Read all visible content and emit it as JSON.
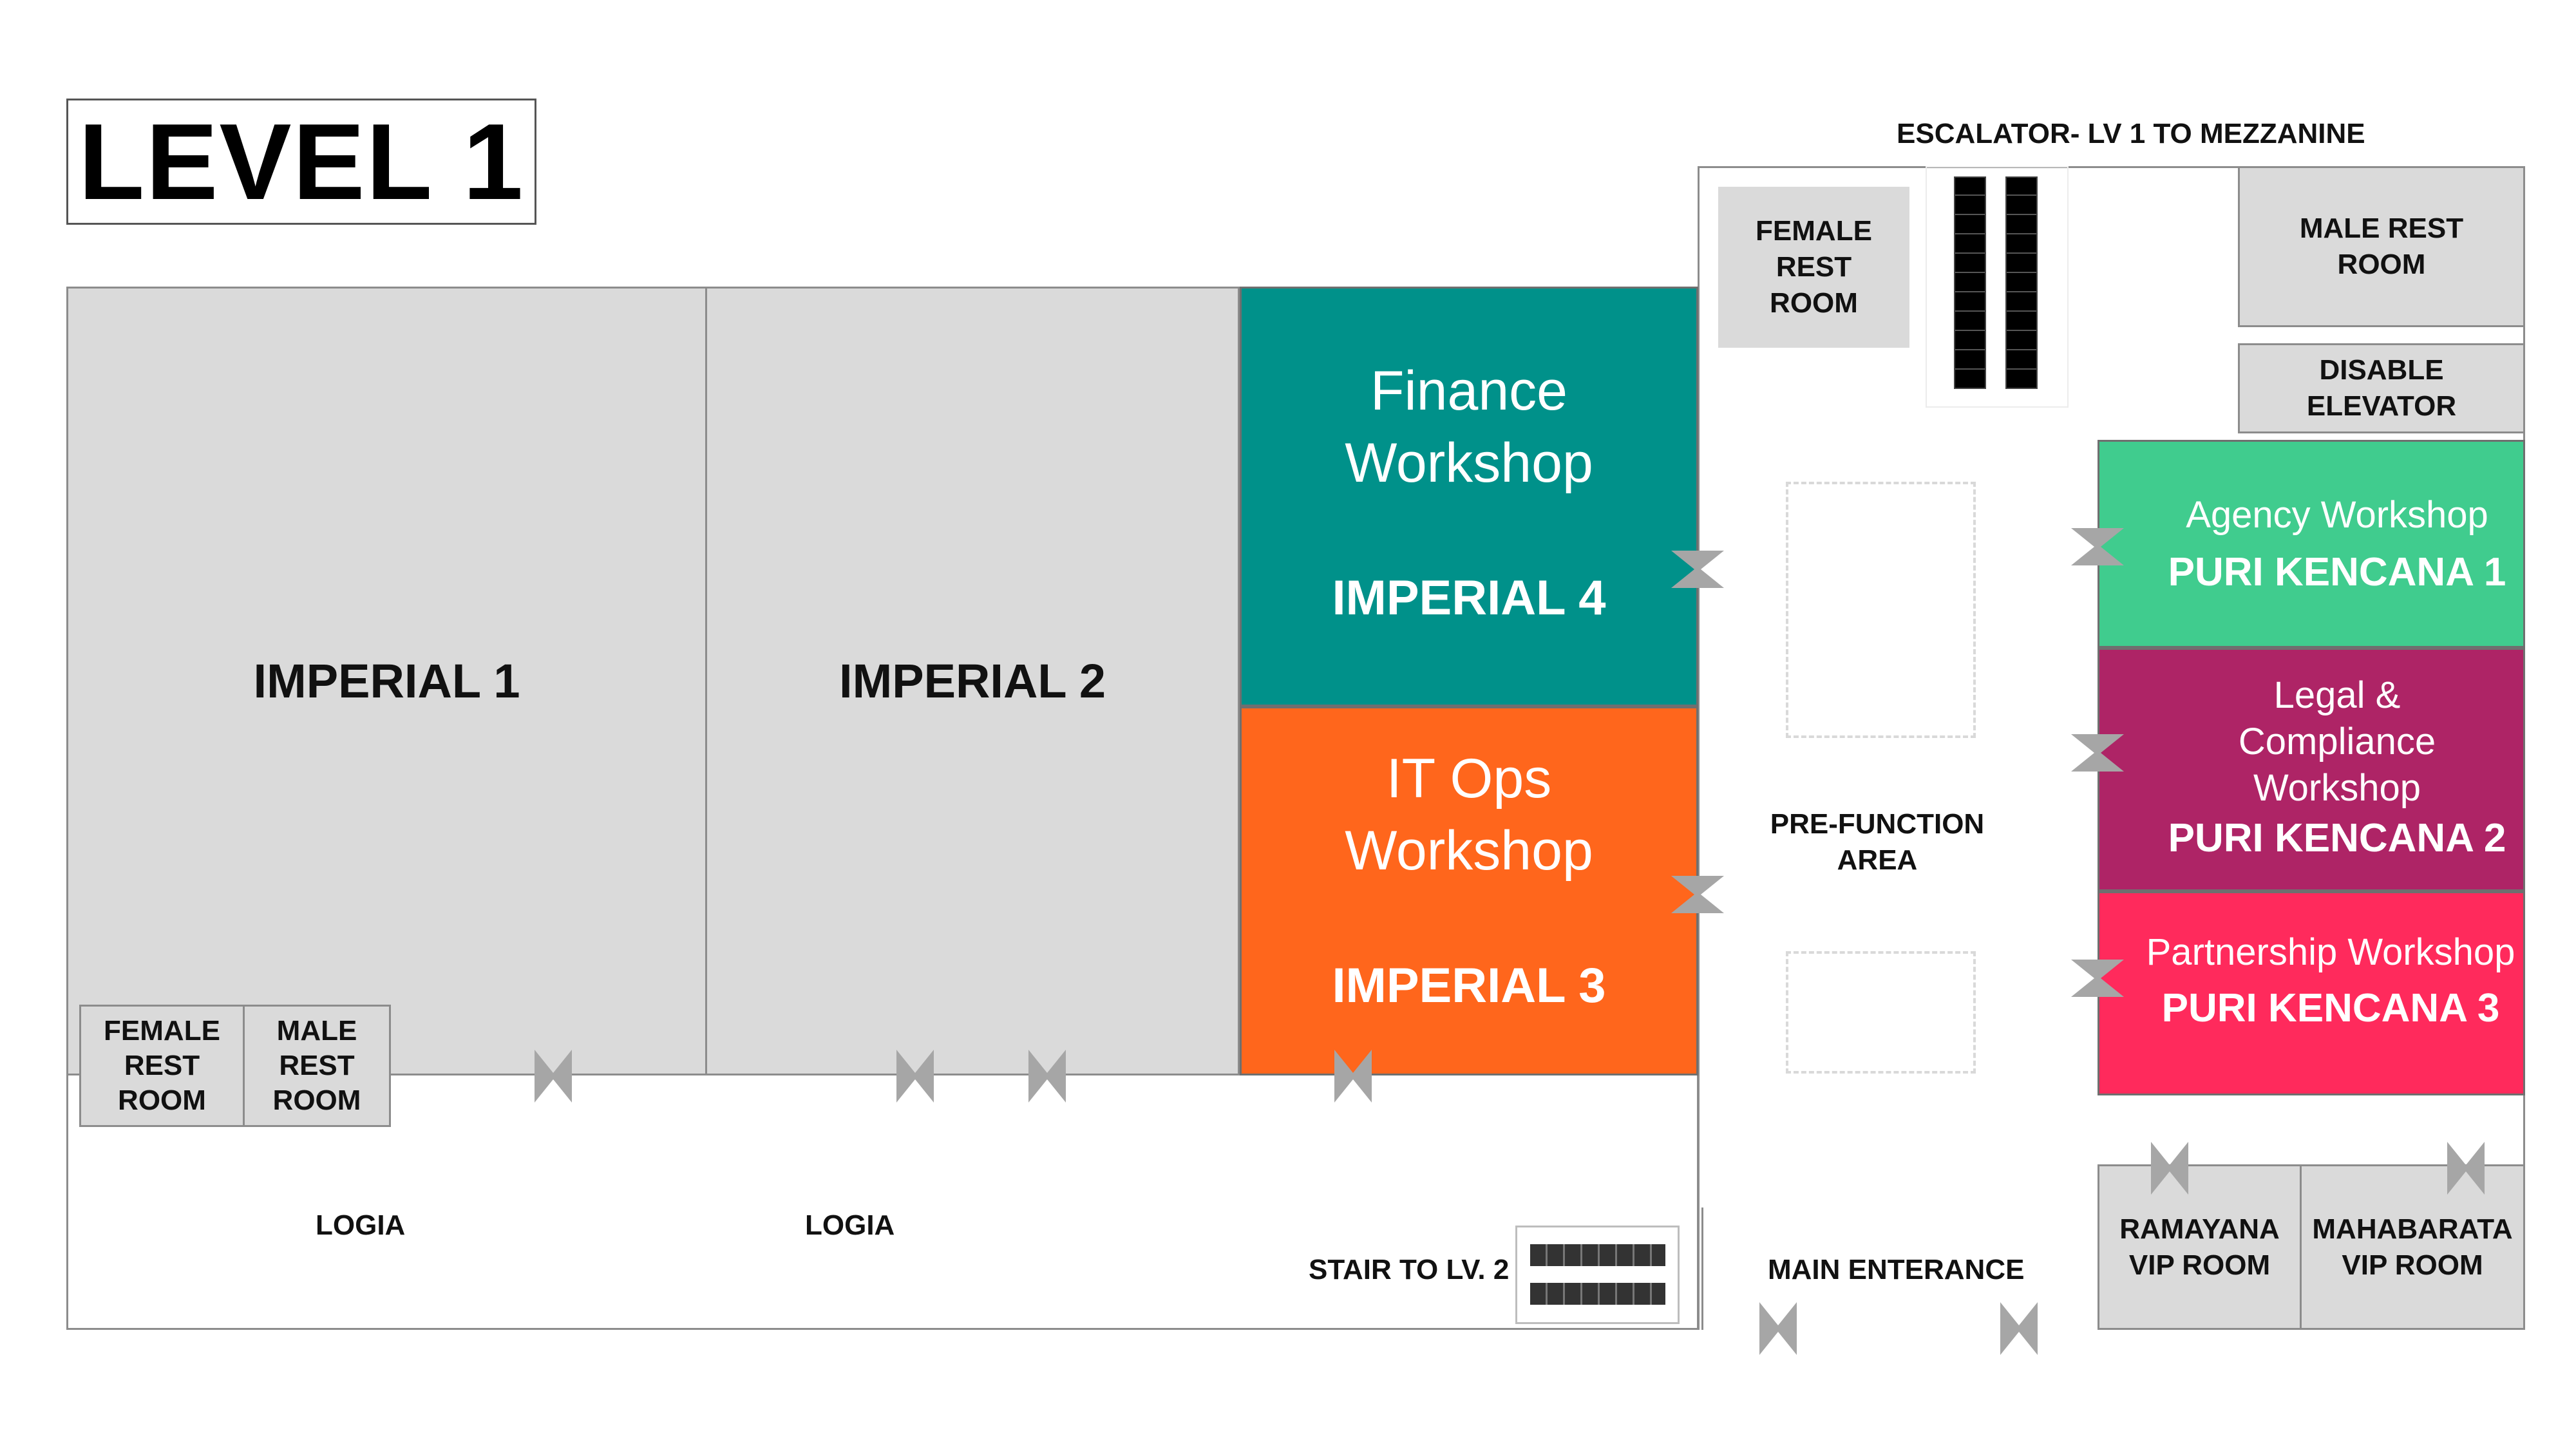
{
  "level_title": "LEVEL 1",
  "rooms": {
    "imperial1": "IMPERIAL 1",
    "imperial2": "IMPERIAL 2",
    "imperial4": {
      "workshop": "Finance Workshop",
      "name": "IMPERIAL 4",
      "color": "#00918a"
    },
    "imperial3": {
      "workshop": "IT Ops Workshop",
      "name": "IMPERIAL 3",
      "color": "#ff661c"
    },
    "puri1": {
      "workshop": "Agency Workshop",
      "name": "PURI KENCANA 1",
      "color": "#40cc8e"
    },
    "puri2": {
      "workshop": "Legal & Compliance Workshop",
      "name": "PURI KENCANA 2",
      "color": "#ae2466"
    },
    "puri3": {
      "workshop": "Partnership Workshop",
      "name": "PURI KENCANA 3",
      "color": "#ff2a5c"
    },
    "female_rest_bottom": "FEMALE REST ROOM",
    "male_rest_bottom": "MALE REST ROOM",
    "female_rest_top": "FEMALE REST ROOM",
    "male_rest_top": "MALE REST ROOM",
    "disable_elevator": "DISABLE ELEVATOR",
    "ramayana": "RAMAYANA VIP ROOM",
    "mahabarata": "MAHABARATA VIP ROOM"
  },
  "labels": {
    "escalator": "ESCALATOR- LV 1 TO MEZZANINE",
    "prefunction": "PRE-FUNCTION AREA",
    "logia_left": "LOGIA",
    "logia_right": "LOGIA",
    "stair": "STAIR TO LV. 2",
    "main_entrance": "MAIN ENTERANCE"
  },
  "colors": {
    "room_grey": "#dadada",
    "door_grey": "#a6a6a6",
    "wall": "#8c8c8c"
  }
}
